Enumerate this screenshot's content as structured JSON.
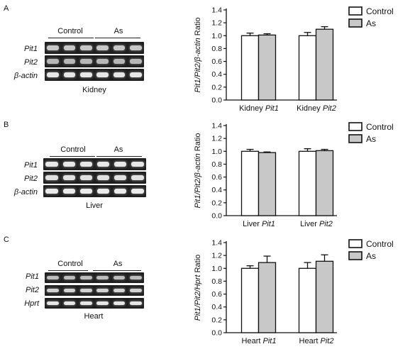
{
  "panels": [
    {
      "letter": "A",
      "tissue": "Kidney",
      "gel": {
        "groups": [
          "Control",
          "As"
        ],
        "rows": [
          {
            "label": "Pit1",
            "brightness": 0.8
          },
          {
            "label": "Pit2",
            "brightness": 0.72
          },
          {
            "label": "β-actin",
            "brightness": 0.95
          }
        ]
      },
      "legend": [
        "Control",
        "As"
      ]
    },
    {
      "letter": "B",
      "tissue": "Liver",
      "gel": {
        "groups": [
          "Control",
          "As"
        ],
        "rows": [
          {
            "label": "Pit1",
            "brightness": 0.95
          },
          {
            "label": "Pit2",
            "brightness": 0.92
          },
          {
            "label": "β-actin",
            "brightness": 0.97
          }
        ]
      },
      "legend": [
        "Control",
        "As"
      ]
    },
    {
      "letter": "C",
      "tissue": "Heart",
      "gel": {
        "groups": [
          "Control",
          "As"
        ],
        "rows": [
          {
            "label": "Pit1",
            "brightness": 0.75
          },
          {
            "label": "Pit2",
            "brightness": 0.85
          },
          {
            "label": "Hprt",
            "brightness": 0.95
          }
        ]
      },
      "legend": [
        "Control",
        "As"
      ]
    }
  ],
  "chart_data": [
    {
      "type": "bar",
      "ylabel": "Pit1/Pit2/β-actin Ratio",
      "ylim": [
        0,
        1.4
      ],
      "yticks": [
        "0.0",
        "0.2",
        "0.4",
        "0.6",
        "0.8",
        "1.0",
        "1.2",
        "1.4"
      ],
      "categories": [
        {
          "prefix": "Kidney ",
          "gene": "Pit1"
        },
        {
          "prefix": "Kidney ",
          "gene": "Pit2"
        }
      ],
      "series": [
        {
          "name": "Control",
          "values": [
            1.0,
            1.0
          ],
          "errors": [
            0.04,
            0.05
          ],
          "fill": "#ffffff"
        },
        {
          "name": "As",
          "values": [
            1.01,
            1.1
          ],
          "errors": [
            0.02,
            0.04
          ],
          "fill": "#c8c8c8"
        }
      ]
    },
    {
      "type": "bar",
      "ylabel": "Pit1/Pit2/β-actin Ratio",
      "ylim": [
        0,
        1.4
      ],
      "yticks": [
        "0.0",
        "0.2",
        "0.4",
        "0.6",
        "0.8",
        "1.0",
        "1.2",
        "1.4"
      ],
      "categories": [
        {
          "prefix": "Liver ",
          "gene": "Pit1"
        },
        {
          "prefix": "Liver ",
          "gene": "Pit2"
        }
      ],
      "series": [
        {
          "name": "Control",
          "values": [
            1.0,
            1.0
          ],
          "errors": [
            0.03,
            0.04
          ],
          "fill": "#ffffff"
        },
        {
          "name": "As",
          "values": [
            0.98,
            1.01
          ],
          "errors": [
            0.01,
            0.02
          ],
          "fill": "#c8c8c8"
        }
      ]
    },
    {
      "type": "bar",
      "ylabel": "Pit1/Pit2/Hprt Ratio",
      "ylim": [
        0,
        1.4
      ],
      "yticks": [
        "0.0",
        "0.2",
        "0.4",
        "0.6",
        "0.8",
        "1.0",
        "1.2",
        "1.4"
      ],
      "categories": [
        {
          "prefix": "Heart ",
          "gene": "Pit1"
        },
        {
          "prefix": "Heart ",
          "gene": "Pit2"
        }
      ],
      "series": [
        {
          "name": "Control",
          "values": [
            1.0,
            1.0
          ],
          "errors": [
            0.04,
            0.09
          ],
          "fill": "#ffffff"
        },
        {
          "name": "As",
          "values": [
            1.09,
            1.11
          ],
          "errors": [
            0.1,
            0.1
          ],
          "fill": "#c8c8c8"
        }
      ]
    }
  ]
}
